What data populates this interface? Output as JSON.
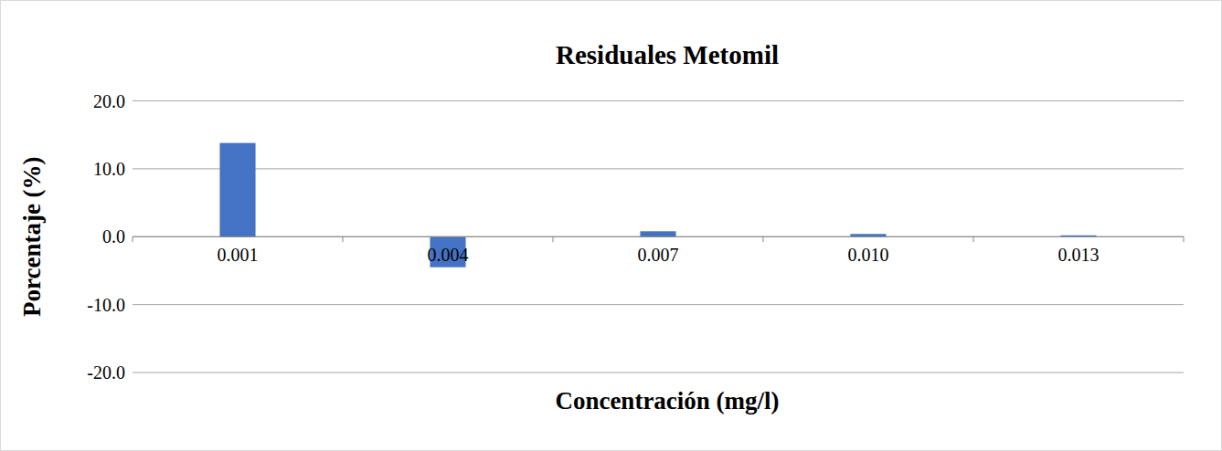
{
  "chart_data": {
    "type": "bar",
    "title": "Residuales Metomil",
    "x_label": "Concentración (mg/l)",
    "y_label": "Porcentaje (%)",
    "categories": [
      "0.001",
      "0.004",
      "0.007",
      "0.010",
      "0.013"
    ],
    "values": [
      13.8,
      -4.5,
      0.8,
      0.4,
      0.2
    ],
    "color": "#4472c4",
    "ylim": [
      -20,
      20
    ],
    "yticks": [
      {
        "value": -20,
        "label": "-20.0"
      },
      {
        "value": -10,
        "label": "-10.0"
      },
      {
        "value": 0,
        "label": "0.0"
      },
      {
        "value": 10,
        "label": "10.0"
      },
      {
        "value": 20,
        "label": "20.0"
      }
    ],
    "grid": true
  }
}
